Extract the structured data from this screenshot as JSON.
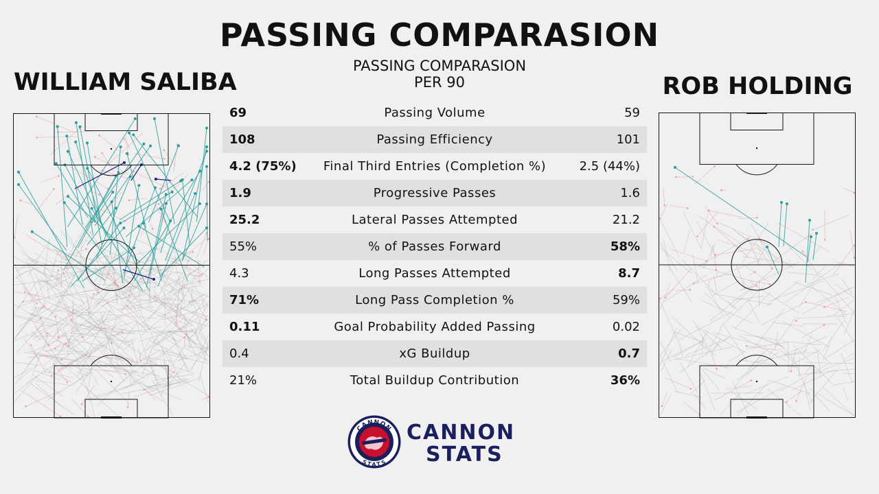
{
  "title": "PASSING COMPARASION",
  "subtitle": "PASSING COMPARASION",
  "subtitle2": "PER 90",
  "players": {
    "left": "WILLIAM SALIBA",
    "right": "ROB HOLDING"
  },
  "stats": [
    {
      "left": "69",
      "metric": "Passing Volume",
      "right": "59",
      "left_bold": true,
      "right_bold": false
    },
    {
      "left": "108",
      "metric": "Passing Efficiency",
      "right": "101",
      "left_bold": true,
      "right_bold": false
    },
    {
      "left": "4.2 (75%)",
      "metric": "Final Third Entries (Completion %)",
      "right": "2.5 (44%)",
      "left_bold": true,
      "right_bold": false
    },
    {
      "left": "1.9",
      "metric": "Progressive Passes",
      "right": "1.6",
      "left_bold": true,
      "right_bold": false
    },
    {
      "left": "25.2",
      "metric": "Lateral Passes Attempted",
      "right": "21.2",
      "left_bold": true,
      "right_bold": false
    },
    {
      "left": "55%",
      "metric": "% of Passes Forward",
      "right": "58%",
      "left_bold": false,
      "right_bold": true
    },
    {
      "left": "4.3",
      "metric": "Long Passes Attempted",
      "right": "8.7",
      "left_bold": false,
      "right_bold": true
    },
    {
      "left": "71%",
      "metric": "Long Pass Completion %",
      "right": "59%",
      "left_bold": true,
      "right_bold": false
    },
    {
      "left": "0.11",
      "metric": "Goal Probability Added Passing",
      "right": "0.02",
      "left_bold": true,
      "right_bold": false
    },
    {
      "left": "0.4",
      "metric": "xG Buildup",
      "right": "0.7",
      "left_bold": false,
      "right_bold": true
    },
    {
      "left": "21%",
      "metric": "Total Buildup Contribution",
      "right": "36%",
      "left_bold": false,
      "right_bold": true
    }
  ],
  "logo": {
    "ring_top": "CANNON",
    "ring_bottom": "STATS",
    "brand_line1": "CANNON",
    "brand_line2": "STATS"
  },
  "colors": {
    "progressive_pass": "#2a9d9a",
    "final_third_pass": "#1b1f8a",
    "pass": "#9a9a9a",
    "failed_pass": "#e8a0a8"
  }
}
